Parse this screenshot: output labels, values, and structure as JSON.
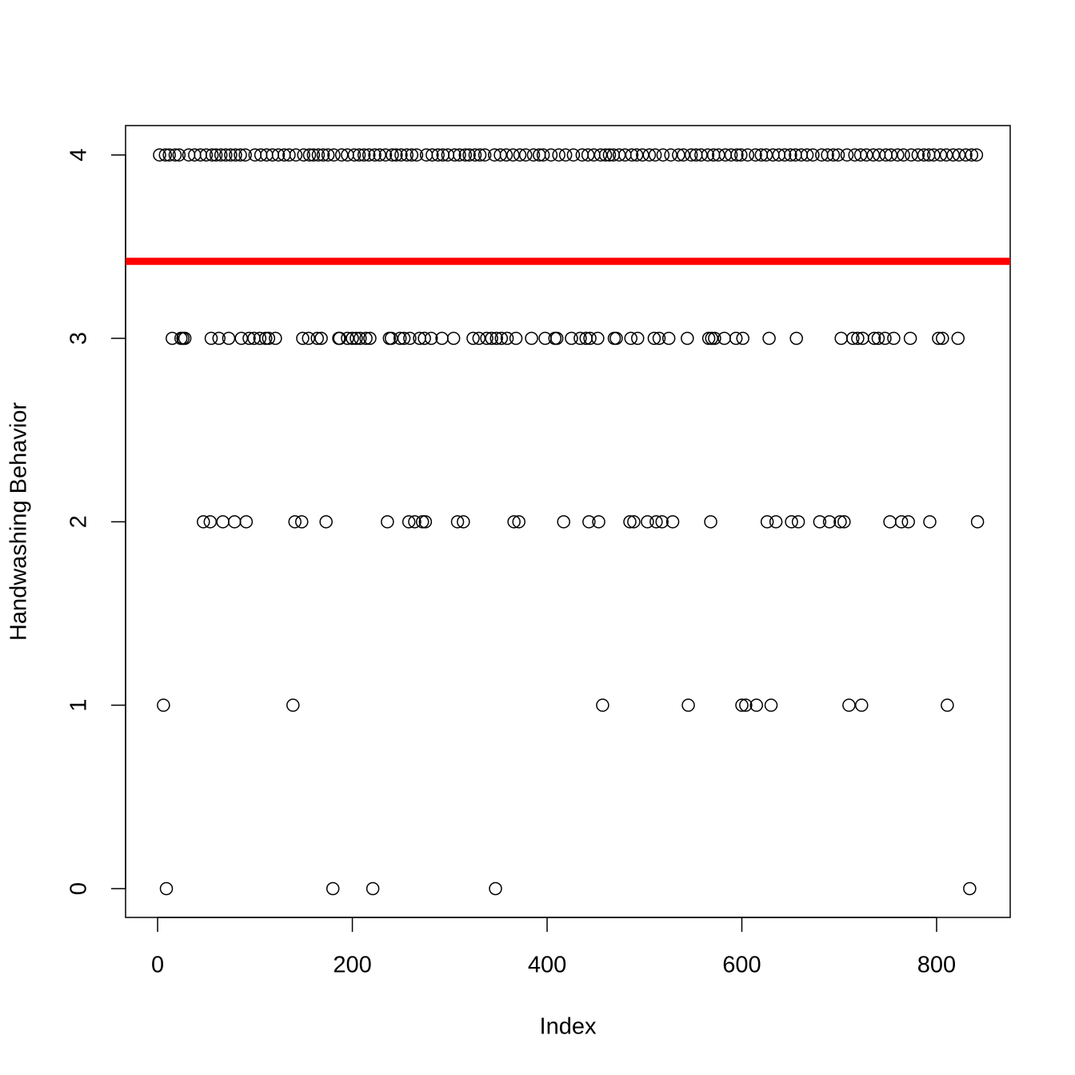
{
  "chart_data": {
    "type": "scatter",
    "x_label": "Index",
    "y_label": "Handwashing Behavior",
    "x": [
      9,
      180,
      221,
      347,
      834,
      6,
      139,
      457,
      545,
      600,
      604,
      615,
      630,
      710,
      723,
      811,
      47,
      54,
      67,
      79,
      91,
      141,
      148,
      173,
      236,
      258,
      264,
      272,
      275,
      308,
      314,
      366,
      371,
      417,
      443,
      453,
      485,
      489,
      503,
      512,
      518,
      529,
      568,
      626,
      635,
      651,
      658,
      680,
      690,
      701,
      705,
      752,
      764,
      771,
      793,
      842,
      15,
      24,
      26,
      28,
      55,
      63,
      73,
      86,
      94,
      99,
      105,
      111,
      114,
      121,
      149,
      155,
      164,
      168,
      186,
      187,
      195,
      200,
      204,
      208,
      214,
      218,
      238,
      240,
      249,
      253,
      259,
      269,
      274,
      281,
      292,
      304,
      324,
      330,
      338,
      343,
      348,
      353,
      359,
      368,
      384,
      398,
      408,
      410,
      425,
      434,
      440,
      444,
      452,
      469,
      471,
      486,
      493,
      510,
      515,
      525,
      544,
      566,
      569,
      572,
      582,
      594,
      601,
      628,
      656,
      702,
      714,
      719,
      724,
      736,
      740,
      747,
      756,
      773,
      802,
      806,
      822,
      2,
      8,
      12,
      18,
      22,
      32,
      38,
      44,
      50,
      56,
      60,
      65,
      70,
      75,
      80,
      85,
      90,
      100,
      106,
      112,
      118,
      124,
      130,
      135,
      142,
      150,
      156,
      160,
      165,
      170,
      175,
      181,
      189,
      195,
      202,
      207,
      212,
      217,
      223,
      228,
      234,
      241,
      245,
      250,
      256,
      261,
      266,
      276,
      282,
      288,
      293,
      298,
      305,
      310,
      316,
      320,
      326,
      331,
      336,
      346,
      352,
      358,
      365,
      372,
      378,
      386,
      392,
      396,
      404,
      412,
      419,
      427,
      436,
      442,
      448,
      455,
      460,
      464,
      468,
      474,
      480,
      487,
      492,
      498,
      505,
      511,
      519,
      527,
      535,
      540,
      548,
      553,
      558,
      565,
      571,
      576,
      583,
      589,
      595,
      599,
      606,
      614,
      620,
      625,
      632,
      638,
      644,
      650,
      655,
      661,
      667,
      673,
      682,
      688,
      694,
      699,
      708,
      716,
      722,
      728,
      735,
      741,
      748,
      753,
      760,
      766,
      774,
      781,
      787,
      792,
      797,
      804,
      810,
      817,
      823,
      830,
      836,
      841
    ],
    "values": [
      0,
      0,
      0,
      0,
      0,
      1,
      1,
      1,
      1,
      1,
      1,
      1,
      1,
      1,
      1,
      1,
      2,
      2,
      2,
      2,
      2,
      2,
      2,
      2,
      2,
      2,
      2,
      2,
      2,
      2,
      2,
      2,
      2,
      2,
      2,
      2,
      2,
      2,
      2,
      2,
      2,
      2,
      2,
      2,
      2,
      2,
      2,
      2,
      2,
      2,
      2,
      2,
      2,
      2,
      2,
      2,
      3,
      3,
      3,
      3,
      3,
      3,
      3,
      3,
      3,
      3,
      3,
      3,
      3,
      3,
      3,
      3,
      3,
      3,
      3,
      3,
      3,
      3,
      3,
      3,
      3,
      3,
      3,
      3,
      3,
      3,
      3,
      3,
      3,
      3,
      3,
      3,
      3,
      3,
      3,
      3,
      3,
      3,
      3,
      3,
      3,
      3,
      3,
      3,
      3,
      3,
      3,
      3,
      3,
      3,
      3,
      3,
      3,
      3,
      3,
      3,
      3,
      3,
      3,
      3,
      3,
      3,
      3,
      3,
      3,
      3,
      3,
      3,
      3,
      3,
      3,
      3,
      3,
      3,
      3,
      3,
      3,
      4,
      4,
      4,
      4,
      4,
      4,
      4,
      4,
      4,
      4,
      4,
      4,
      4,
      4,
      4,
      4,
      4,
      4,
      4,
      4,
      4,
      4,
      4,
      4,
      4,
      4,
      4,
      4,
      4,
      4,
      4,
      4,
      4,
      4,
      4,
      4,
      4,
      4,
      4,
      4,
      4,
      4,
      4,
      4,
      4,
      4,
      4,
      4,
      4,
      4,
      4,
      4,
      4,
      4,
      4,
      4,
      4,
      4,
      4,
      4,
      4,
      4,
      4,
      4,
      4,
      4,
      4,
      4,
      4,
      4,
      4,
      4,
      4,
      4,
      4,
      4,
      4,
      4,
      4,
      4,
      4,
      4,
      4,
      4,
      4,
      4,
      4,
      4,
      4,
      4,
      4,
      4,
      4,
      4,
      4,
      4,
      4,
      4,
      4,
      4,
      4,
      4,
      4,
      4,
      4,
      4,
      4,
      4,
      4,
      4,
      4,
      4,
      4,
      4,
      4,
      4,
      4,
      4,
      4,
      4,
      4,
      4,
      4,
      4,
      4,
      4,
      4,
      4,
      4,
      4,
      4,
      4,
      4,
      4,
      4,
      4,
      4,
      4
    ],
    "color": "#000000",
    "hline": 3.42,
    "hline_color": "#ff0000",
    "xlim": [
      -32.9,
      875.6
    ],
    "xticks": [
      0,
      200,
      400,
      600,
      800
    ],
    "ylim": [
      -0.157,
      4.16
    ],
    "yticks": [
      0,
      1,
      2,
      3,
      4
    ]
  }
}
